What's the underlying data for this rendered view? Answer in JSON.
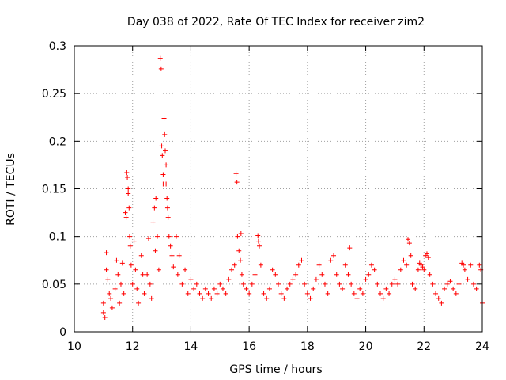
{
  "chart_data": {
    "type": "scatter",
    "title": "Day 038 of 2022, Rate Of TEC Index for receiver zim2",
    "xlabel": "GPS time / hours",
    "ylabel": "ROTI / TECUs",
    "xlim": [
      10,
      24
    ],
    "ylim": [
      0,
      0.3
    ],
    "xticks": [
      10,
      12,
      14,
      16,
      18,
      20,
      22,
      24
    ],
    "xtick_labels": [
      "10",
      "12",
      "14",
      "16",
      "18",
      "20",
      "22",
      "24"
    ],
    "yticks": [
      0,
      0.05,
      0.1,
      0.15,
      0.2,
      0.25,
      0.3
    ],
    "ytick_labels": [
      "0",
      "0.05",
      "0.1",
      "0.15",
      "0.2",
      "0.25",
      "0.3"
    ],
    "grid": true,
    "marker": "+",
    "color": "#ff0000",
    "series": [
      {
        "name": "ROTI",
        "points": [
          [
            11.0,
            0.02
          ],
          [
            11.0,
            0.03
          ],
          [
            11.05,
            0.015
          ],
          [
            11.1,
            0.083
          ],
          [
            11.1,
            0.065
          ],
          [
            11.15,
            0.055
          ],
          [
            11.2,
            0.04
          ],
          [
            11.25,
            0.035
          ],
          [
            11.3,
            0.025
          ],
          [
            11.4,
            0.045
          ],
          [
            11.45,
            0.075
          ],
          [
            11.5,
            0.06
          ],
          [
            11.55,
            0.03
          ],
          [
            11.6,
            0.05
          ],
          [
            11.65,
            0.072
          ],
          [
            11.7,
            0.04
          ],
          [
            11.75,
            0.125
          ],
          [
            11.78,
            0.12
          ],
          [
            11.8,
            0.167
          ],
          [
            11.82,
            0.162
          ],
          [
            11.85,
            0.15
          ],
          [
            11.85,
            0.145
          ],
          [
            11.88,
            0.13
          ],
          [
            11.9,
            0.1
          ],
          [
            11.92,
            0.09
          ],
          [
            11.95,
            0.07
          ],
          [
            12.0,
            0.05
          ],
          [
            12.05,
            0.095
          ],
          [
            12.1,
            0.065
          ],
          [
            12.15,
            0.045
          ],
          [
            12.2,
            0.03
          ],
          [
            12.3,
            0.08
          ],
          [
            12.35,
            0.06
          ],
          [
            12.4,
            0.04
          ],
          [
            12.5,
            0.06
          ],
          [
            12.55,
            0.098
          ],
          [
            12.6,
            0.05
          ],
          [
            12.65,
            0.035
          ],
          [
            12.7,
            0.115
          ],
          [
            12.75,
            0.13
          ],
          [
            12.78,
            0.085
          ],
          [
            12.8,
            0.14
          ],
          [
            12.85,
            0.1
          ],
          [
            12.9,
            0.065
          ],
          [
            12.95,
            0.287
          ],
          [
            12.98,
            0.276
          ],
          [
            13.0,
            0.195
          ],
          [
            13.02,
            0.185
          ],
          [
            13.05,
            0.165
          ],
          [
            13.05,
            0.155
          ],
          [
            13.08,
            0.224
          ],
          [
            13.1,
            0.207
          ],
          [
            13.12,
            0.19
          ],
          [
            13.15,
            0.175
          ],
          [
            13.15,
            0.155
          ],
          [
            13.18,
            0.14
          ],
          [
            13.2,
            0.13
          ],
          [
            13.22,
            0.12
          ],
          [
            13.25,
            0.1
          ],
          [
            13.3,
            0.09
          ],
          [
            13.35,
            0.08
          ],
          [
            13.4,
            0.068
          ],
          [
            13.5,
            0.1
          ],
          [
            13.55,
            0.06
          ],
          [
            13.6,
            0.08
          ],
          [
            13.7,
            0.05
          ],
          [
            13.8,
            0.065
          ],
          [
            13.9,
            0.04
          ],
          [
            14.0,
            0.055
          ],
          [
            14.1,
            0.045
          ],
          [
            14.2,
            0.05
          ],
          [
            14.3,
            0.04
          ],
          [
            14.4,
            0.035
          ],
          [
            14.5,
            0.045
          ],
          [
            14.6,
            0.04
          ],
          [
            14.7,
            0.035
          ],
          [
            14.8,
            0.045
          ],
          [
            14.9,
            0.04
          ],
          [
            15.0,
            0.05
          ],
          [
            15.1,
            0.045
          ],
          [
            15.2,
            0.04
          ],
          [
            15.3,
            0.055
          ],
          [
            15.4,
            0.065
          ],
          [
            15.5,
            0.07
          ],
          [
            15.55,
            0.166
          ],
          [
            15.58,
            0.157
          ],
          [
            15.6,
            0.1
          ],
          [
            15.65,
            0.085
          ],
          [
            15.7,
            0.075
          ],
          [
            15.72,
            0.103
          ],
          [
            15.75,
            0.06
          ],
          [
            15.8,
            0.05
          ],
          [
            15.9,
            0.045
          ],
          [
            16.0,
            0.04
          ],
          [
            16.1,
            0.05
          ],
          [
            16.2,
            0.06
          ],
          [
            16.3,
            0.101
          ],
          [
            16.32,
            0.095
          ],
          [
            16.35,
            0.09
          ],
          [
            16.4,
            0.07
          ],
          [
            16.5,
            0.04
          ],
          [
            16.6,
            0.035
          ],
          [
            16.7,
            0.045
          ],
          [
            16.8,
            0.065
          ],
          [
            16.9,
            0.06
          ],
          [
            17.0,
            0.05
          ],
          [
            17.1,
            0.04
          ],
          [
            17.2,
            0.035
          ],
          [
            17.3,
            0.045
          ],
          [
            17.4,
            0.05
          ],
          [
            17.5,
            0.055
          ],
          [
            17.6,
            0.06
          ],
          [
            17.7,
            0.07
          ],
          [
            17.8,
            0.075
          ],
          [
            17.9,
            0.05
          ],
          [
            18.0,
            0.04
          ],
          [
            18.1,
            0.035
          ],
          [
            18.2,
            0.045
          ],
          [
            18.3,
            0.055
          ],
          [
            18.4,
            0.07
          ],
          [
            18.5,
            0.06
          ],
          [
            18.6,
            0.05
          ],
          [
            18.7,
            0.04
          ],
          [
            18.8,
            0.075
          ],
          [
            18.9,
            0.08
          ],
          [
            19.0,
            0.06
          ],
          [
            19.1,
            0.05
          ],
          [
            19.2,
            0.045
          ],
          [
            19.3,
            0.07
          ],
          [
            19.4,
            0.06
          ],
          [
            19.45,
            0.088
          ],
          [
            19.5,
            0.05
          ],
          [
            19.6,
            0.04
          ],
          [
            19.7,
            0.035
          ],
          [
            19.8,
            0.045
          ],
          [
            19.9,
            0.04
          ],
          [
            20.0,
            0.055
          ],
          [
            20.1,
            0.06
          ],
          [
            20.2,
            0.07
          ],
          [
            20.3,
            0.065
          ],
          [
            20.4,
            0.05
          ],
          [
            20.5,
            0.04
          ],
          [
            20.6,
            0.035
          ],
          [
            20.7,
            0.045
          ],
          [
            20.8,
            0.04
          ],
          [
            20.9,
            0.05
          ],
          [
            21.0,
            0.055
          ],
          [
            21.1,
            0.05
          ],
          [
            21.2,
            0.065
          ],
          [
            21.3,
            0.075
          ],
          [
            21.4,
            0.07
          ],
          [
            21.45,
            0.097
          ],
          [
            21.5,
            0.093
          ],
          [
            21.55,
            0.08
          ],
          [
            21.6,
            0.05
          ],
          [
            21.7,
            0.045
          ],
          [
            21.8,
            0.065
          ],
          [
            21.85,
            0.072
          ],
          [
            21.9,
            0.07
          ],
          [
            21.95,
            0.068
          ],
          [
            22.0,
            0.065
          ],
          [
            22.05,
            0.08
          ],
          [
            22.1,
            0.082
          ],
          [
            22.15,
            0.078
          ],
          [
            22.2,
            0.06
          ],
          [
            22.3,
            0.05
          ],
          [
            22.4,
            0.04
          ],
          [
            22.5,
            0.035
          ],
          [
            22.6,
            0.03
          ],
          [
            22.7,
            0.045
          ],
          [
            22.8,
            0.05
          ],
          [
            22.9,
            0.053
          ],
          [
            23.0,
            0.045
          ],
          [
            23.1,
            0.04
          ],
          [
            23.2,
            0.05
          ],
          [
            23.3,
            0.072
          ],
          [
            23.35,
            0.07
          ],
          [
            23.4,
            0.065
          ],
          [
            23.5,
            0.055
          ],
          [
            23.6,
            0.07
          ],
          [
            23.7,
            0.05
          ],
          [
            23.8,
            0.045
          ],
          [
            23.9,
            0.07
          ],
          [
            23.95,
            0.065
          ],
          [
            24.0,
            0.03
          ]
        ]
      }
    ]
  }
}
